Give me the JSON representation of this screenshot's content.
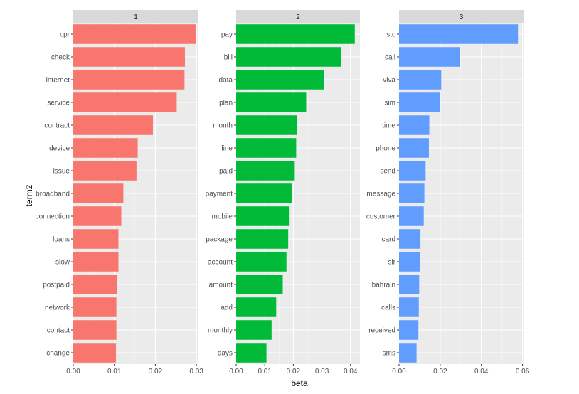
{
  "chart_data": {
    "type": "bar",
    "orientation": "horizontal",
    "xlabel": "beta",
    "ylabel": "term2",
    "grid": true,
    "legend": "none",
    "panels": [
      {
        "label": "1",
        "color": "#F8766D",
        "xlim": [
          0,
          0.0305
        ],
        "xticks": [
          "0.00",
          "0.01",
          "0.02",
          "0.03"
        ],
        "xtick_values": [
          0,
          0.01,
          0.02,
          0.03
        ],
        "categories": [
          "cpr",
          "check",
          "internet",
          "service",
          "contract",
          "device",
          "issue",
          "broadband",
          "connection",
          "loans",
          "slow",
          "postpaid",
          "network",
          "contact",
          "change"
        ],
        "values": [
          0.0298,
          0.0272,
          0.0271,
          0.0252,
          0.0194,
          0.0157,
          0.0154,
          0.0122,
          0.0117,
          0.011,
          0.011,
          0.0106,
          0.0105,
          0.0105,
          0.0104
        ]
      },
      {
        "label": "2",
        "color": "#00BA38",
        "xlim": [
          0,
          0.0433
        ],
        "xticks": [
          "0.00",
          "0.01",
          "0.02",
          "0.03",
          "0.04"
        ],
        "xtick_values": [
          0,
          0.01,
          0.02,
          0.03,
          0.04
        ],
        "categories": [
          "pay",
          "bill",
          "data",
          "plan",
          "month",
          "line",
          "paid",
          "payment",
          "mobile",
          "package",
          "account",
          "amount",
          "add",
          "monthly",
          "days"
        ],
        "values": [
          0.0415,
          0.0368,
          0.0307,
          0.0245,
          0.0214,
          0.021,
          0.0205,
          0.0194,
          0.0187,
          0.0182,
          0.0176,
          0.0163,
          0.014,
          0.0124,
          0.0106
        ]
      },
      {
        "label": "3",
        "color": "#619CFF",
        "xlim": [
          0,
          0.0605
        ],
        "xticks": [
          "0.00",
          "0.02",
          "0.04",
          "0.06"
        ],
        "xtick_values": [
          0,
          0.02,
          0.04,
          0.06
        ],
        "categories": [
          "stc",
          "call",
          "viva",
          "sim",
          "time",
          "phone",
          "send",
          "message",
          "customer",
          "card",
          "sir",
          "bahrain",
          "calls",
          "received",
          "sms"
        ],
        "values": [
          0.0578,
          0.0297,
          0.0205,
          0.0199,
          0.0147,
          0.0145,
          0.0129,
          0.0123,
          0.012,
          0.0104,
          0.0101,
          0.0098,
          0.0096,
          0.0094,
          0.0085
        ]
      }
    ]
  }
}
